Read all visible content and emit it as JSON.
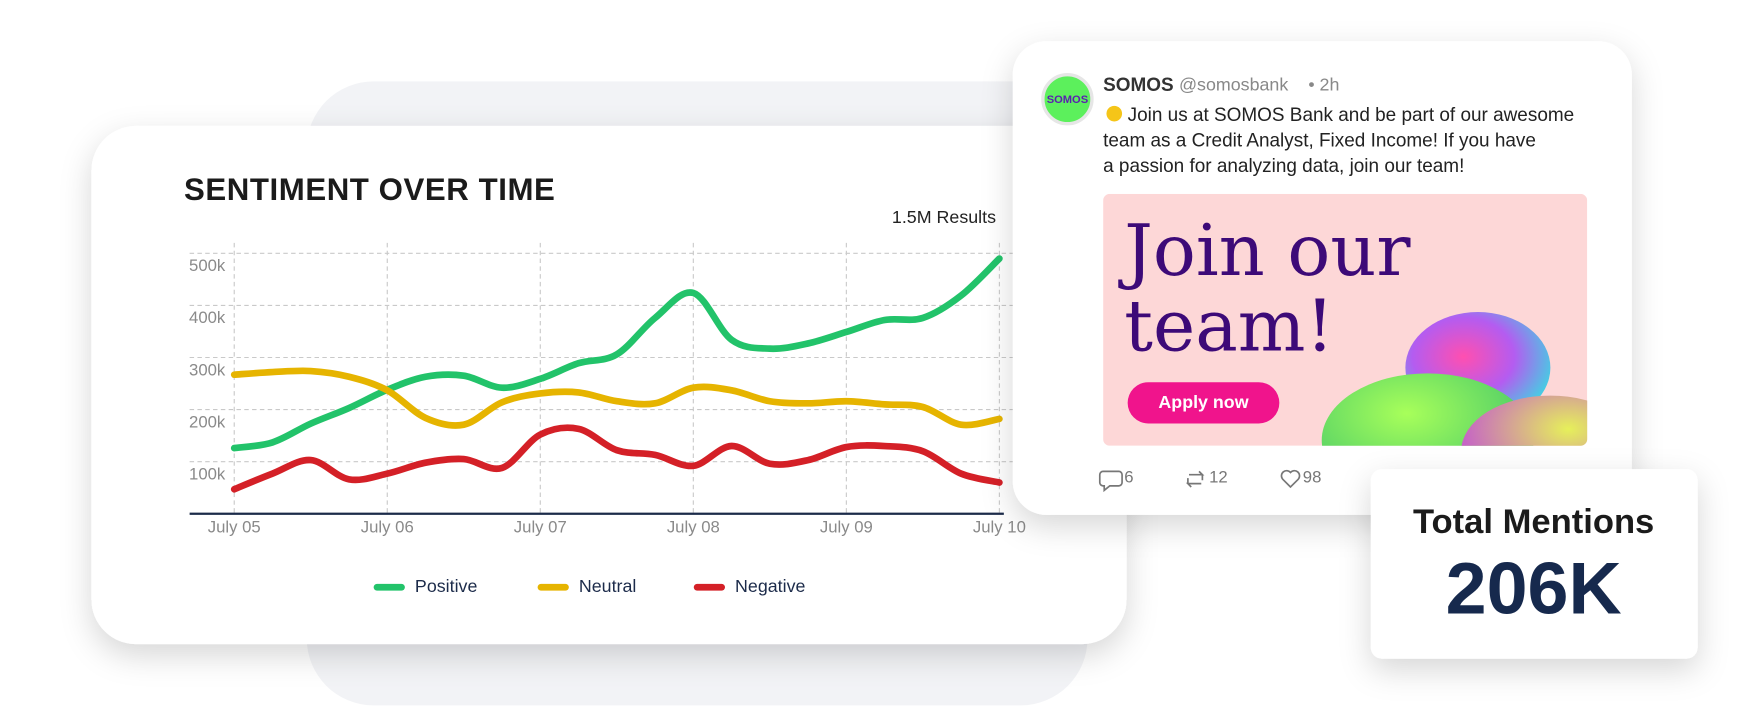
{
  "chart_data": {
    "type": "line",
    "title": "SENTIMENT OVER TIME",
    "results_label": "1.5M Results",
    "categories": [
      "July 05",
      null,
      null,
      null,
      "July 06",
      null,
      null,
      null,
      "July 07",
      null,
      null,
      null,
      "July 08",
      null,
      null,
      null,
      "July 09",
      null,
      null,
      null,
      "July 10"
    ],
    "series": [
      {
        "name": "Positive",
        "color": "#22c36a",
        "values": [
          126000,
          137000,
          173000,
          203000,
          238000,
          263000,
          265000,
          242000,
          259000,
          289000,
          306000,
          376000,
          424000,
          334000,
          317000,
          327000,
          349000,
          372000,
          376000,
          419000,
          490000
        ]
      },
      {
        "name": "Neutral",
        "color": "#e6b400",
        "values": [
          267000,
          272000,
          274000,
          263000,
          237000,
          184000,
          171000,
          214000,
          231000,
          233000,
          216000,
          212000,
          242000,
          237000,
          216000,
          212000,
          216000,
          210000,
          205000,
          171000,
          182000
        ]
      },
      {
        "name": "Negative",
        "color": "#d42027",
        "values": [
          47000,
          77000,
          103000,
          66000,
          77000,
          98000,
          105000,
          88000,
          152000,
          163000,
          122000,
          113000,
          92000,
          130000,
          96000,
          103000,
          128000,
          130000,
          120000,
          77000,
          60000
        ]
      }
    ],
    "ylim": [
      0,
      520000
    ],
    "yticks": [
      {
        "value": 100000,
        "label": "100k"
      },
      {
        "value": 200000,
        "label": "200k"
      },
      {
        "value": 300000,
        "label": "300k"
      },
      {
        "value": 400000,
        "label": "400k"
      },
      {
        "value": 500000,
        "label": "500k"
      }
    ],
    "grid": true,
    "legend": "bottom"
  },
  "tweet": {
    "avatar": "SOMOS",
    "name": "SOMOS",
    "handle": "@somosbank",
    "time": "• 2h",
    "text_lines": [
      "Join us at SOMOS Bank and be part of our awesome",
      "team as a Credit Analyst, Fixed Income! If you have",
      "a passion for analyzing data, join our team!"
    ],
    "image_headline": [
      "Join our",
      "team!"
    ],
    "button": "Apply now",
    "replies": 6,
    "retweets": 12,
    "likes": 98
  },
  "total_mentions": {
    "label": "Total Mentions",
    "value": "206K"
  }
}
